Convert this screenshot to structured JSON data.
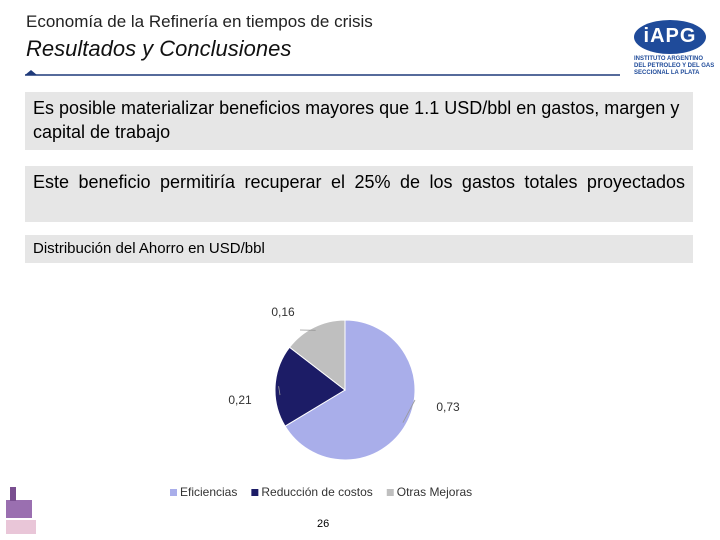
{
  "header": {
    "title": "Economía de la Refinería en tiempos de crisis",
    "subtitle": "Resultados y Conclusiones",
    "logo": {
      "name": "iAPG",
      "lines": [
        "INSTITUTO ARGENTINO",
        "DEL PETROLEO Y DEL GAS",
        "SECCIONAL LA PLATA"
      ]
    }
  },
  "boxes": [
    "Es posible materializar beneficios mayores que 1.1 USD/bbl en gastos, margen y capital de trabajo",
    "Este beneficio permitiría recuperar el 25% de los gastos totales proyectados",
    "Distribución del Ahorro en USD/bbl"
  ],
  "chart_data": {
    "type": "pie",
    "categories": [
      "Eficiencias",
      "Reducción de costos",
      "Otras Mejoras"
    ],
    "values": [
      0.73,
      0.21,
      0.16
    ],
    "value_labels": [
      "0,73",
      "0,21",
      "0,16"
    ],
    "colors": [
      "#a9aeea",
      "#1c1c66",
      "#bfbfbf"
    ],
    "legend": "bottom"
  },
  "page_number": "26"
}
